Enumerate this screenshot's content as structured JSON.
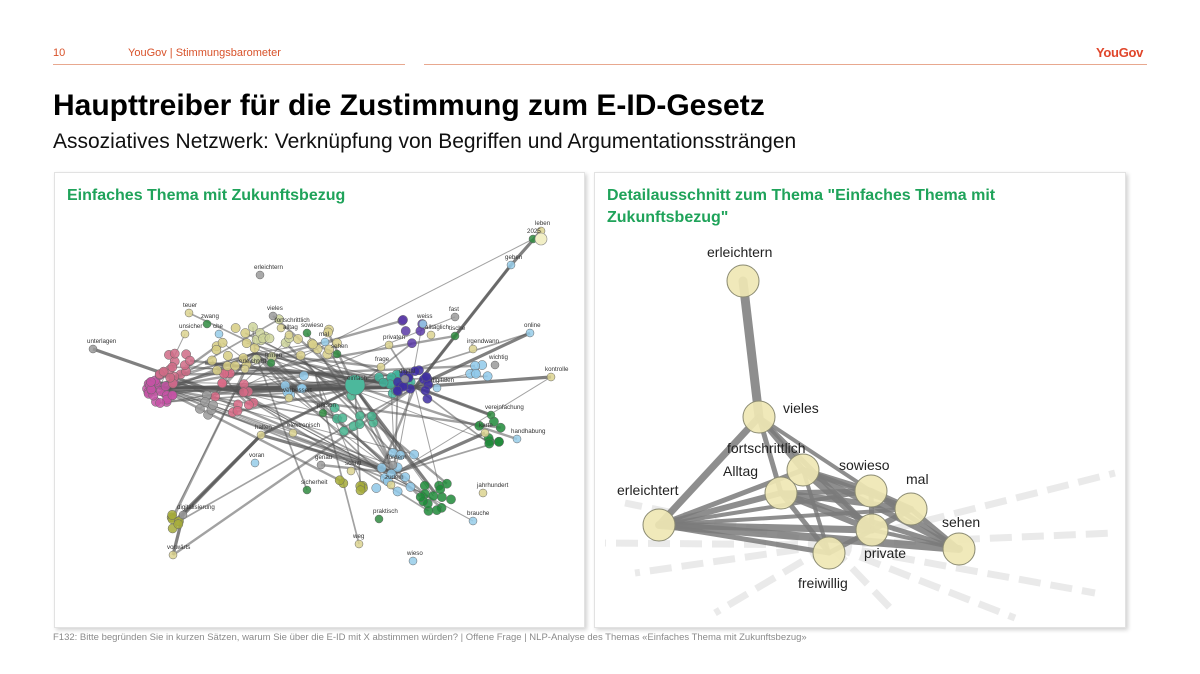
{
  "header": {
    "page_number": "10",
    "section": "YouGov | Stimmungsbarometer",
    "brand": "YouGov"
  },
  "title": "Haupttreiber für die Zustimmung zum E-ID-Gesetz",
  "subtitle": "Assoziatives Netzwerk: Verknüpfung von Begriffen und Argumentationssträngen",
  "left_panel": {
    "title": "Einfaches Thema mit Zukunftsbezug",
    "labels": [
      "leben",
      "2025",
      "geben",
      "erleichtern",
      "teuer",
      "zwang",
      "unsicher",
      "che",
      "vieles",
      "fortschrittlich",
      "sowieso",
      "alltag",
      "mal",
      "unterlagen",
      "erleichtert",
      "sehen",
      "privaten",
      "weiss",
      "fast",
      "alltäglich",
      "tische",
      "irgendwann",
      "online",
      "wichtig",
      "kontrolle",
      "firmen",
      "frage",
      "digitalen",
      "digital",
      "elektronisch",
      "vereinfachung",
      "karte",
      "handhabung",
      "einfach",
      "verbessert",
      "person",
      "halten",
      "voran",
      "genau",
      "schritt",
      "sicherheit",
      "jahrhundert",
      "brauche",
      "digitalisierung",
      "vorwärts",
      "praktisch",
      "weg",
      "wieso",
      "fördern",
      "zudem"
    ]
  },
  "right_panel": {
    "title": "Detailausschnitt zum Thema \"Einfaches Thema mit Zukunftsbezug\"",
    "nodes": [
      "erleichtern",
      "vieles",
      "fortschrittlich",
      "Alltag",
      "sowieso",
      "mal",
      "erleichtert",
      "sehen",
      "private",
      "freiwillig"
    ]
  },
  "footnote": "F132: Bitte begründen Sie in kurzen Sätzen, warum Sie über die E-ID mit X abstimmen würden? | Offene Frage | NLP-Analyse des Themas «Einfaches Thema mit Zukunftsbezug»",
  "colors": {
    "accent": "#d8522a",
    "green": "#1fa35a",
    "node_fill": "#efe7b4",
    "edge": "#777777"
  }
}
